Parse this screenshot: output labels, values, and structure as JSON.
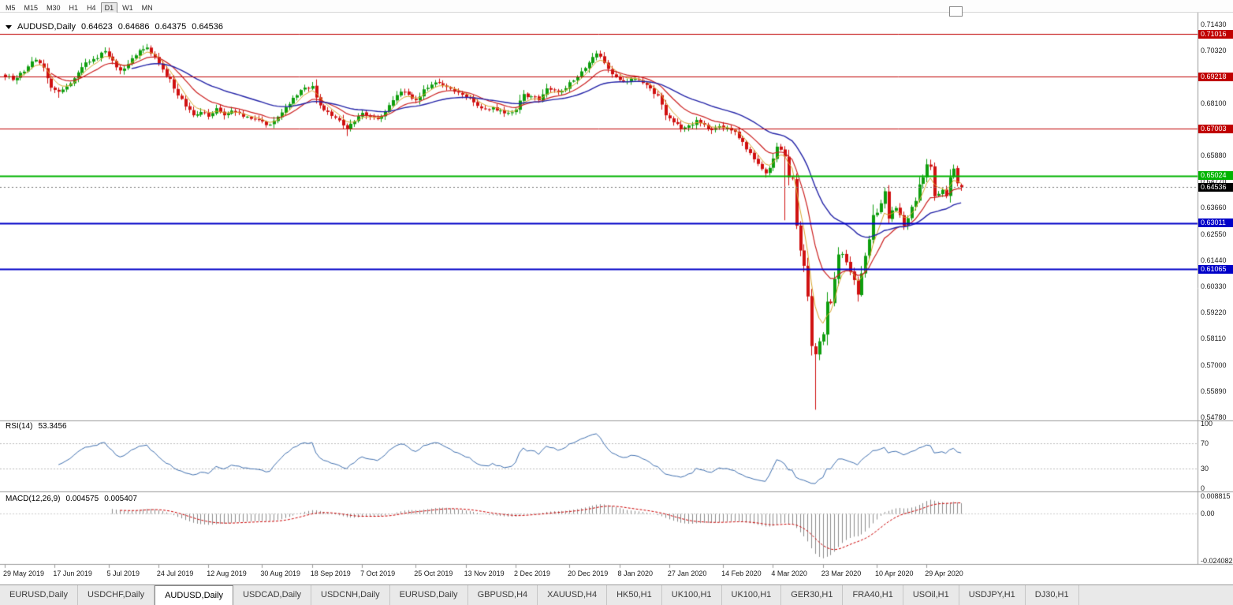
{
  "toolbar": {
    "periods": [
      "M5",
      "M15",
      "M30",
      "H1",
      "H4",
      "D1",
      "W1",
      "MN"
    ],
    "active": "D1"
  },
  "ohlc_bar": {
    "symbol": "AUDUSD,Daily",
    "open": "0.64623",
    "high": "0.64686",
    "low": "0.64375",
    "close": "0.64536"
  },
  "rsi_panel": {
    "name": "RSI(14)",
    "value": "53.3456",
    "axis": [
      "100",
      "70",
      "30",
      "0"
    ],
    "levels": [
      70,
      30
    ],
    "color": "#4070b0"
  },
  "macd_panel": {
    "name": "MACD(12,26,9)",
    "main": "0.004575",
    "signal": "0.005407",
    "axis": [
      "0.008815",
      "0.00",
      "-0.024082"
    ],
    "hist_color": "#8c8c8c",
    "signal_color": "#cc0000"
  },
  "tabs": {
    "active_index": 2,
    "items": [
      "EURUSD,Daily",
      "USDCHF,Daily",
      "AUDUSD,Daily",
      "USDCAD,Daily",
      "USDCNH,Daily",
      "EURUSD,Daily",
      "GBPUSD,H4",
      "XAUUSD,H4",
      "HK50,H1",
      "UK100,H1",
      "UK100,H1",
      "GER30,H1",
      "FRA40,H1",
      "USOil,H1",
      "USDJPY,H1",
      "DJ30,H1"
    ]
  },
  "chart_data": {
    "type": "candlestick",
    "symbol": "AUDUSD",
    "timeframe": "Daily",
    "n_candles": 250,
    "ylim": [
      0.5478,
      0.7143
    ],
    "price_axis_labels": [
      "0.71430",
      "0.70320",
      "0.69210",
      "0.68100",
      "0.66990",
      "0.65880",
      "0.64770",
      "0.63660",
      "0.62550",
      "0.61440",
      "0.60330",
      "0.59220",
      "0.58110",
      "0.57000",
      "0.55890",
      "0.54780"
    ],
    "x_labels": [
      "29 May 2019",
      "17 Jun 2019",
      "5 Jul 2019",
      "24 Jul 2019",
      "12 Aug 2019",
      "30 Aug 2019",
      "18 Sep 2019",
      "7 Oct 2019",
      "25 Oct 2019",
      "13 Nov 2019",
      "2 Dec 2019",
      "20 Dec 2019",
      "8 Jan 2020",
      "27 Jan 2020",
      "14 Feb 2020",
      "4 Mar 2020",
      "23 Mar 2020",
      "10 Apr 2020",
      "29 Apr 2020"
    ],
    "x_label_indices": [
      0,
      13,
      27,
      40,
      53,
      67,
      80,
      93,
      107,
      120,
      133,
      147,
      160,
      173,
      187,
      200,
      213,
      227,
      240
    ],
    "close_anchors": [
      [
        0,
        0.6922
      ],
      [
        2,
        0.6908
      ],
      [
        4,
        0.6938
      ],
      [
        6,
        0.6965
      ],
      [
        8,
        0.6993
      ],
      [
        10,
        0.696
      ],
      [
        12,
        0.6875
      ],
      [
        14,
        0.6858
      ],
      [
        16,
        0.688
      ],
      [
        18,
        0.6915
      ],
      [
        20,
        0.6962
      ],
      [
        22,
        0.6985
      ],
      [
        24,
        0.7
      ],
      [
        26,
        0.703
      ],
      [
        28,
        0.699
      ],
      [
        30,
        0.6948
      ],
      [
        32,
        0.6975
      ],
      [
        34,
        0.7012
      ],
      [
        36,
        0.7038
      ],
      [
        37,
        0.7045
      ],
      [
        39,
        0.7005
      ],
      [
        41,
        0.6952
      ],
      [
        43,
        0.6912
      ],
      [
        45,
        0.6842
      ],
      [
        47,
        0.6795
      ],
      [
        49,
        0.6758
      ],
      [
        51,
        0.6772
      ],
      [
        53,
        0.6752
      ],
      [
        55,
        0.6788
      ],
      [
        57,
        0.6758
      ],
      [
        59,
        0.6778
      ],
      [
        61,
        0.6768
      ],
      [
        63,
        0.6752
      ],
      [
        65,
        0.6742
      ],
      [
        67,
        0.6732
      ],
      [
        69,
        0.6718
      ],
      [
        71,
        0.6752
      ],
      [
        73,
        0.6792
      ],
      [
        75,
        0.6832
      ],
      [
        77,
        0.6865
      ],
      [
        79,
        0.6872
      ],
      [
        80,
        0.6882
      ],
      [
        82,
        0.68
      ],
      [
        84,
        0.6772
      ],
      [
        86,
        0.6748
      ],
      [
        88,
        0.6715
      ],
      [
        89,
        0.6702
      ],
      [
        91,
        0.6732
      ],
      [
        93,
        0.6768
      ],
      [
        95,
        0.6752
      ],
      [
        97,
        0.6742
      ],
      [
        99,
        0.6772
      ],
      [
        101,
        0.6822
      ],
      [
        103,
        0.6858
      ],
      [
        105,
        0.6845
      ],
      [
        107,
        0.6822
      ],
      [
        109,
        0.6868
      ],
      [
        111,
        0.6888
      ],
      [
        113,
        0.6895
      ],
      [
        115,
        0.6878
      ],
      [
        117,
        0.6858
      ],
      [
        119,
        0.6845
      ],
      [
        121,
        0.6832
      ],
      [
        123,
        0.6798
      ],
      [
        125,
        0.6785
      ],
      [
        127,
        0.6792
      ],
      [
        129,
        0.6778
      ],
      [
        131,
        0.6768
      ],
      [
        133,
        0.6782
      ],
      [
        135,
        0.6848
      ],
      [
        137,
        0.6838
      ],
      [
        139,
        0.6822
      ],
      [
        141,
        0.6872
      ],
      [
        143,
        0.6865
      ],
      [
        145,
        0.6862
      ],
      [
        147,
        0.6898
      ],
      [
        149,
        0.6922
      ],
      [
        151,
        0.6958
      ],
      [
        153,
        0.7005
      ],
      [
        154,
        0.702
      ],
      [
        156,
        0.698
      ],
      [
        158,
        0.6932
      ],
      [
        160,
        0.6908
      ],
      [
        162,
        0.6902
      ],
      [
        164,
        0.6912
      ],
      [
        166,
        0.6895
      ],
      [
        168,
        0.6872
      ],
      [
        170,
        0.6842
      ],
      [
        172,
        0.6758
      ],
      [
        174,
        0.6728
      ],
      [
        176,
        0.6702
      ],
      [
        178,
        0.6715
      ],
      [
        180,
        0.6738
      ],
      [
        182,
        0.6718
      ],
      [
        184,
        0.6695
      ],
      [
        186,
        0.6712
      ],
      [
        188,
        0.6705
      ],
      [
        190,
        0.6688
      ],
      [
        192,
        0.6645
      ],
      [
        194,
        0.6598
      ],
      [
        196,
        0.6552
      ],
      [
        198,
        0.6512
      ],
      [
        199,
        0.6535
      ],
      [
        201,
        0.6625
      ],
      [
        202,
        0.6612
      ],
      [
        203,
        0.6583
      ],
      [
        204,
        0.6495
      ],
      [
        205,
        0.649
      ],
      [
        206,
        0.629
      ],
      [
        207,
        0.6185
      ],
      [
        208,
        0.612
      ],
      [
        209,
        0.599
      ],
      [
        210,
        0.578
      ],
      [
        211,
        0.5745
      ],
      [
        212,
        0.58
      ],
      [
        213,
        0.583
      ],
      [
        214,
        0.5968
      ],
      [
        215,
        0.5962
      ],
      [
        216,
        0.6065
      ],
      [
        217,
        0.6168
      ],
      [
        218,
        0.617
      ],
      [
        219,
        0.6135
      ],
      [
        220,
        0.6095
      ],
      [
        221,
        0.606
      ],
      [
        222,
        0.5998
      ],
      [
        223,
        0.6088
      ],
      [
        224,
        0.6162
      ],
      [
        225,
        0.6232
      ],
      [
        226,
        0.6335
      ],
      [
        227,
        0.6345
      ],
      [
        228,
        0.6385
      ],
      [
        229,
        0.6436
      ],
      [
        230,
        0.632
      ],
      [
        231,
        0.6355
      ],
      [
        232,
        0.6365
      ],
      [
        233,
        0.6335
      ],
      [
        234,
        0.629
      ],
      [
        235,
        0.6322
      ],
      [
        236,
        0.637
      ],
      [
        237,
        0.6395
      ],
      [
        238,
        0.6465
      ],
      [
        239,
        0.6495
      ],
      [
        240,
        0.655
      ],
      [
        241,
        0.654
      ],
      [
        242,
        0.6415
      ],
      [
        243,
        0.6425
      ],
      [
        244,
        0.6442
      ],
      [
        245,
        0.6415
      ],
      [
        246,
        0.6495
      ],
      [
        247,
        0.6532
      ],
      [
        248,
        0.647
      ],
      [
        249,
        0.64536
      ]
    ],
    "wick_lows": {
      "14": 0.6832,
      "89": 0.667,
      "203": 0.6313,
      "211": 0.551
    },
    "wick_highs": {
      "26": 0.7042,
      "37": 0.7048,
      "154": 0.7032,
      "241": 0.657
    },
    "last_candle": {
      "open": 0.64623,
      "high": 0.64686,
      "low": 0.64375,
      "close": 0.64536
    },
    "current_price": {
      "value": 0.64536,
      "label": "0.64536"
    },
    "hlines": [
      {
        "value": 0.71016,
        "label": "0.71016",
        "color": "#c00000",
        "width": 1
      },
      {
        "value": 0.69218,
        "label": "0.69218",
        "color": "#c00000",
        "width": 1
      },
      {
        "value": 0.67003,
        "label": "0.67003",
        "color": "#c00000",
        "width": 1
      },
      {
        "value": 0.65024,
        "label": "0.65024",
        "color": "#00b400",
        "width": 2
      },
      {
        "value": 0.63011,
        "label": "0.63011",
        "color": "#0000c8",
        "width": 2
      },
      {
        "value": 0.61065,
        "label": "0.61065",
        "color": "#0000c8",
        "width": 2
      }
    ],
    "moving_averages": [
      {
        "period": 5,
        "method": "ema",
        "color": "#d8a62c"
      },
      {
        "period": 13,
        "method": "ema",
        "color": "#cc2020"
      },
      {
        "period": 34,
        "method": "ema",
        "color": "#2424a8"
      }
    ],
    "colors": {
      "bull": "#0e9e0e",
      "bear": "#d01010",
      "current_line": "#777777",
      "separator": "#9a9a9a"
    }
  }
}
